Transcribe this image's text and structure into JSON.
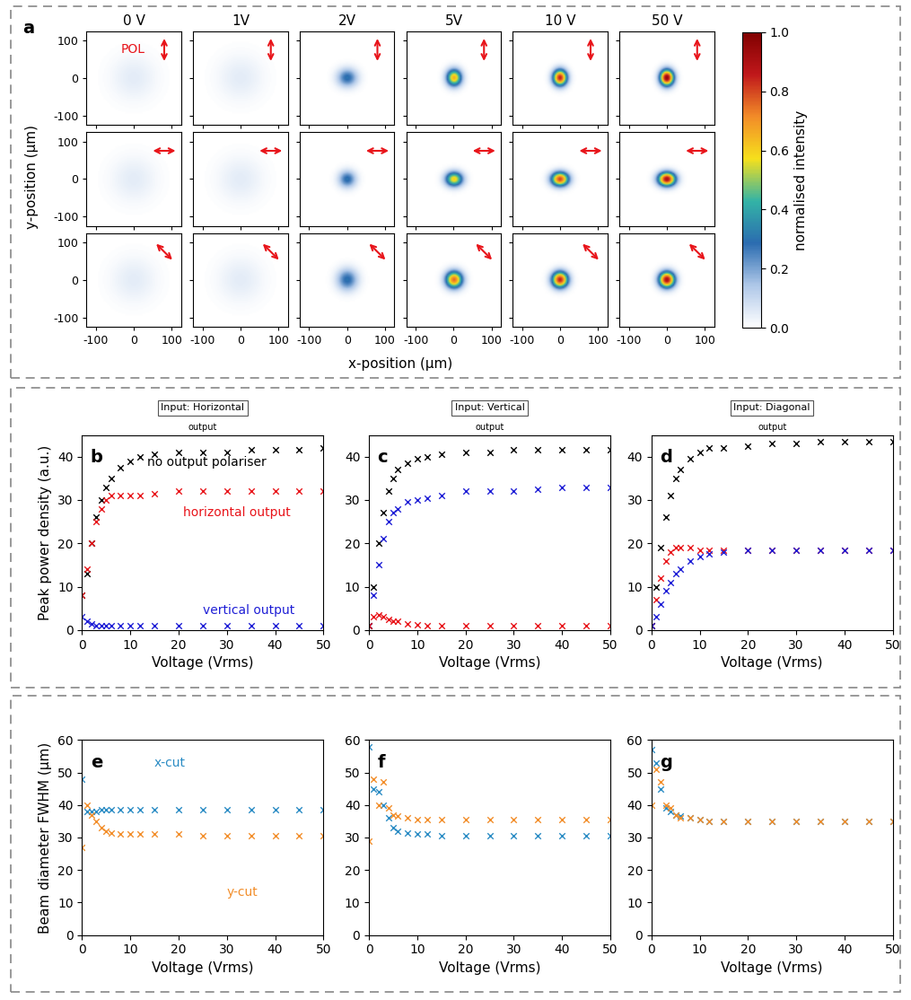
{
  "chart_data": [
    {
      "type": "image_grid",
      "panel": "a",
      "columns": [
        "0 V",
        "1V",
        "2V",
        "5V",
        "10 V",
        "50 V"
      ],
      "pol_label": "POL",
      "pol_angles": [
        90,
        0,
        -45
      ],
      "x_label": "x-position (µm)",
      "y_label": "y-position (µm)",
      "xlim": [
        -125,
        125
      ],
      "ylim": [
        -125,
        125
      ],
      "xticks": [
        -100,
        0,
        100
      ],
      "yticks": [
        -100,
        0,
        100
      ],
      "spots": [
        [
          {
            "peak": 0.05,
            "fwhm_x": 100,
            "fwhm_y": 100
          },
          {
            "peak": 0.05,
            "fwhm_x": 100,
            "fwhm_y": 100
          },
          {
            "peak": 0.3,
            "fwhm_x": 44,
            "fwhm_y": 40
          },
          {
            "peak": 0.65,
            "fwhm_x": 33,
            "fwhm_y": 37
          },
          {
            "peak": 0.85,
            "fwhm_x": 31,
            "fwhm_y": 35.5
          },
          {
            "peak": 0.95,
            "fwhm_x": 30.5,
            "fwhm_y": 35.5
          }
        ],
        [
          {
            "peak": 0.05,
            "fwhm_x": 100,
            "fwhm_y": 100
          },
          {
            "peak": 0.05,
            "fwhm_x": 100,
            "fwhm_y": 100
          },
          {
            "peak": 0.3,
            "fwhm_x": 38,
            "fwhm_y": 37
          },
          {
            "peak": 0.6,
            "fwhm_x": 38,
            "fwhm_y": 32
          },
          {
            "peak": 0.8,
            "fwhm_x": 38.5,
            "fwhm_y": 31
          },
          {
            "peak": 0.9,
            "fwhm_x": 38.5,
            "fwhm_y": 30.5
          }
        ],
        [
          {
            "peak": 0.05,
            "fwhm_x": 100,
            "fwhm_y": 100
          },
          {
            "peak": 0.05,
            "fwhm_x": 100,
            "fwhm_y": 100
          },
          {
            "peak": 0.3,
            "fwhm_x": 45,
            "fwhm_y": 47
          },
          {
            "peak": 0.75,
            "fwhm_x": 37,
            "fwhm_y": 37
          },
          {
            "peak": 0.85,
            "fwhm_x": 35.5,
            "fwhm_y": 35.5
          },
          {
            "peak": 0.9,
            "fwhm_x": 35,
            "fwhm_y": 35
          }
        ]
      ],
      "colorbar": {
        "label": "normalised intensity",
        "range": [
          0,
          1
        ],
        "ticks": [
          {
            "value": 0,
            "label": "0.0"
          },
          {
            "value": 0.2,
            "label": "0.2"
          },
          {
            "value": 0.4,
            "label": "0.4"
          },
          {
            "value": 0.6,
            "label": "0.6"
          },
          {
            "value": 0.8,
            "label": "0.8"
          },
          {
            "value": 1,
            "label": "1.0"
          }
        ]
      }
    },
    {
      "type": "scatter",
      "panel": "b",
      "inset_title": "Input: Horizontal",
      "inset_label": "output",
      "x_label": "Voltage (Vrms)",
      "y_label": "Peak power density (a.u.)",
      "marker": "x",
      "x": [
        0,
        1,
        2,
        3,
        4,
        5,
        6,
        8,
        10,
        12,
        15,
        20,
        25,
        30,
        35,
        40,
        45,
        50
      ],
      "xlim": [
        0,
        50
      ],
      "ylim": [
        0,
        45
      ],
      "xticks": [
        0,
        10,
        20,
        30,
        40,
        50
      ],
      "yticks": [
        0,
        10,
        20,
        30,
        40
      ],
      "series": [
        {
          "name": "no output polariser",
          "color": "#000000",
          "values": [
            8,
            13,
            20,
            26,
            30,
            33,
            35,
            37.5,
            39,
            40,
            40.5,
            41,
            41,
            41,
            41.5,
            41.5,
            41.5,
            42
          ]
        },
        {
          "name": "horizontal output",
          "color": "#e8141a",
          "values": [
            8,
            14,
            20,
            25,
            28,
            30,
            31,
            31,
            31,
            31,
            31.5,
            32,
            32,
            32,
            32,
            32,
            32,
            32
          ]
        },
        {
          "name": "vertical output",
          "color": "#1f1fd6",
          "values": [
            3,
            2,
            1.5,
            1,
            1,
            1,
            1,
            1,
            1,
            1,
            1,
            1,
            1,
            1,
            1,
            1,
            1,
            1
          ]
        }
      ]
    },
    {
      "type": "scatter",
      "panel": "c",
      "inset_title": "Input: Vertical",
      "inset_label": "output",
      "x_label": "Voltage (Vrms)",
      "marker": "x",
      "x": [
        0,
        1,
        2,
        3,
        4,
        5,
        6,
        8,
        10,
        12,
        15,
        20,
        25,
        30,
        35,
        40,
        45,
        50
      ],
      "xlim": [
        0,
        50
      ],
      "ylim": [
        0,
        45
      ],
      "xticks": [
        0,
        10,
        20,
        30,
        40,
        50
      ],
      "yticks": [
        0,
        10,
        20,
        30,
        40
      ],
      "series": [
        {
          "color": "#000000",
          "values": [
            1,
            10,
            20,
            27,
            32,
            35,
            37,
            38.5,
            39.5,
            40,
            40.5,
            41,
            41,
            41.5,
            41.5,
            41.5,
            41.5,
            41.5
          ]
        },
        {
          "color": "#1f1fd6",
          "values": [
            1,
            8,
            15,
            21,
            25,
            27,
            28,
            29.5,
            30,
            30.5,
            31,
            32,
            32,
            32,
            32.5,
            33,
            33,
            33
          ]
        },
        {
          "color": "#e8141a",
          "values": [
            1,
            3,
            3.5,
            3,
            2.5,
            2,
            2,
            1.5,
            1.2,
            1,
            1,
            1,
            1,
            1,
            1,
            1,
            1,
            1
          ]
        }
      ]
    },
    {
      "type": "scatter",
      "panel": "d",
      "inset_title": "Input: Diagonal",
      "inset_label": "output",
      "x_label": "Voltage (Vrms)",
      "marker": "x",
      "x": [
        0,
        1,
        2,
        3,
        4,
        5,
        6,
        8,
        10,
        12,
        15,
        20,
        25,
        30,
        35,
        40,
        45,
        50
      ],
      "xlim": [
        0,
        50
      ],
      "ylim": [
        0,
        45
      ],
      "xticks": [
        0,
        10,
        20,
        30,
        40,
        50
      ],
      "yticks": [
        0,
        10,
        20,
        30,
        40
      ],
      "series": [
        {
          "color": "#000000",
          "values": [
            1,
            10,
            19,
            26,
            31,
            35,
            37,
            39.5,
            41,
            42,
            42,
            42.5,
            43,
            43,
            43.5,
            43.5,
            43.5,
            43.5
          ]
        },
        {
          "color": "#e8141a",
          "values": [
            1,
            7,
            12,
            16,
            18,
            19,
            19,
            19,
            18.5,
            18.5,
            18.5,
            18.5,
            18.5,
            18.5,
            18.5,
            18.5,
            18.5,
            18.5
          ]
        },
        {
          "color": "#1f1fd6",
          "values": [
            1,
            3,
            6,
            9,
            11,
            13,
            14,
            16,
            17,
            17.5,
            18,
            18.5,
            18.5,
            18.5,
            18.5,
            18.5,
            18.5,
            18.5
          ]
        }
      ]
    },
    {
      "type": "scatter",
      "panel": "e",
      "x_label": "Voltage (Vrms)",
      "y_label": "Beam diameter FWHM (µm)",
      "marker": "x",
      "x": [
        0,
        1,
        2,
        3,
        4,
        5,
        6,
        8,
        10,
        12,
        15,
        20,
        25,
        30,
        35,
        40,
        45,
        50
      ],
      "xlim": [
        0,
        50
      ],
      "ylim": [
        0,
        60
      ],
      "xticks": [
        0,
        10,
        20,
        30,
        40,
        50
      ],
      "yticks": [
        0,
        10,
        20,
        30,
        40,
        50,
        60
      ],
      "series": [
        {
          "name": "x-cut",
          "color": "#2b8cc4",
          "values": [
            48,
            38,
            38,
            38,
            38.5,
            38.5,
            38.5,
            38.5,
            38.5,
            38.5,
            38.5,
            38.5,
            38.5,
            38.5,
            38.5,
            38.5,
            38.5,
            38.5
          ]
        },
        {
          "name": "y-cut",
          "color": "#f28e2b",
          "values": [
            27,
            40,
            37,
            35,
            33,
            32,
            31.5,
            31,
            31,
            31,
            31,
            31,
            30.5,
            30.5,
            30.5,
            30.5,
            30.5,
            30.5
          ]
        }
      ]
    },
    {
      "type": "scatter",
      "panel": "f",
      "x_label": "Voltage (Vrms)",
      "marker": "x",
      "x": [
        0,
        1,
        2,
        3,
        4,
        5,
        6,
        8,
        10,
        12,
        15,
        20,
        25,
        30,
        35,
        40,
        45,
        50
      ],
      "xlim": [
        0,
        50
      ],
      "ylim": [
        0,
        60
      ],
      "xticks": [
        0,
        10,
        20,
        30,
        40,
        50
      ],
      "yticks": [
        0,
        10,
        20,
        30,
        40,
        50,
        60
      ],
      "series": [
        {
          "color": "#2b8cc4",
          "values": [
            58,
            45,
            44,
            40,
            36,
            33,
            32,
            31.5,
            31,
            31,
            30.5,
            30.5,
            30.5,
            30.5,
            30.5,
            30.5,
            30.5,
            30.5
          ]
        },
        {
          "color": "#f28e2b",
          "values": [
            29,
            48,
            40,
            47,
            39,
            37,
            36.5,
            36,
            35.5,
            35.5,
            35.5,
            35.5,
            35.5,
            35.5,
            35.5,
            35.5,
            35.5,
            35.5
          ]
        }
      ]
    },
    {
      "type": "scatter",
      "panel": "g",
      "x_label": "Voltage (Vrms)",
      "marker": "x",
      "x": [
        0,
        1,
        2,
        3,
        4,
        5,
        6,
        8,
        10,
        12,
        15,
        20,
        25,
        30,
        35,
        40,
        45,
        50
      ],
      "xlim": [
        0,
        50
      ],
      "ylim": [
        0,
        60
      ],
      "xticks": [
        0,
        10,
        20,
        30,
        40,
        50
      ],
      "yticks": [
        0,
        10,
        20,
        30,
        40,
        50,
        60
      ],
      "series": [
        {
          "color": "#2b8cc4",
          "values": [
            57,
            53,
            45,
            39,
            38,
            37,
            36.5,
            36,
            35.5,
            35,
            35,
            35,
            35,
            35,
            35,
            35,
            35,
            35
          ]
        },
        {
          "color": "#f28e2b",
          "values": [
            40,
            51,
            47,
            40,
            39,
            37,
            36,
            36,
            35.5,
            35,
            35,
            35,
            35,
            35,
            35,
            35,
            35,
            35
          ]
        }
      ]
    }
  ]
}
